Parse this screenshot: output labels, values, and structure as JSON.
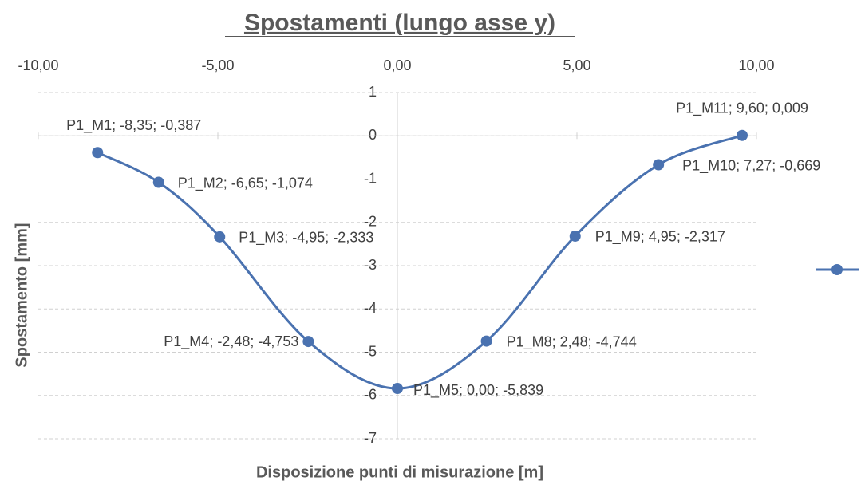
{
  "chart_data": {
    "type": "scatter",
    "title": "Spostamenti (lungo asse y)",
    "x_label": "Disposizione punti di misurazione [m]",
    "y_label": "Spostamento [mm]",
    "xlim": [
      -10,
      10
    ],
    "xticks": [
      {
        "value": -10,
        "label": "-10,00"
      },
      {
        "value": -5,
        "label": "-5,00"
      },
      {
        "value": 0,
        "label": "0,00"
      },
      {
        "value": 5,
        "label": "5,00"
      },
      {
        "value": 10,
        "label": "10,00"
      }
    ],
    "ylim": [
      -7,
      1
    ],
    "yticks": [
      1,
      0,
      -1,
      -2,
      -3,
      -4,
      -5,
      -6,
      -7
    ],
    "grid": true,
    "smooth": true,
    "series": [
      {
        "color": "#4a72b0",
        "x": [
          -8.35,
          -6.65,
          -4.95,
          -2.48,
          0.0,
          2.48,
          4.95,
          7.27,
          9.6
        ],
        "values": [
          -0.387,
          -1.074,
          -2.333,
          -4.753,
          -5.839,
          -4.744,
          -2.317,
          -0.669,
          0.009
        ],
        "value_labels": [
          "P1_M1; -8,35; -0,387",
          "P1_M2; -6,65; -1,074",
          "P1_M3; -4,95; -2,333",
          "P1_M4; -2,48; -4,753",
          "P1_M5; 0,00; -5,839",
          "P1_M8; 2,48; -4,744",
          "P1_M9; 4,95; -2,317",
          "P1_M10; 7,27; -0,669",
          "P1_M11; 9,60; 0,009"
        ]
      }
    ]
  }
}
